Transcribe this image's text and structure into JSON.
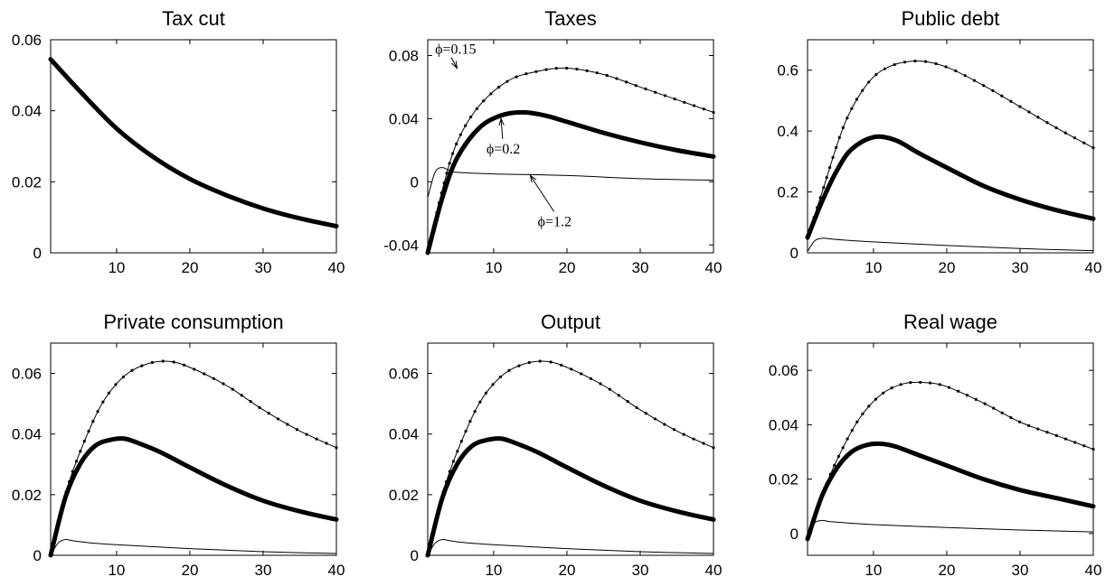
{
  "chart_data": [
    {
      "type": "line",
      "title": "Tax cut",
      "xlim": [
        1,
        40
      ],
      "ylim": [
        0,
        0.06
      ],
      "xticks": [
        "10",
        "20",
        "30",
        "40"
      ],
      "yticks": [
        "0",
        "0.02",
        "0.04",
        "0.06"
      ],
      "series": [
        {
          "style": "thick",
          "points": [
            [
              1,
              0.0545
            ],
            [
              5,
              0.0455
            ],
            [
              10,
              0.035
            ],
            [
              15,
              0.027
            ],
            [
              20,
              0.0208
            ],
            [
              25,
              0.0162
            ],
            [
              30,
              0.0125
            ],
            [
              35,
              0.0097
            ],
            [
              40,
              0.0075
            ]
          ]
        }
      ],
      "annotations": []
    },
    {
      "type": "line",
      "title": "Taxes",
      "xlim": [
        1,
        40
      ],
      "ylim": [
        -0.045,
        0.09
      ],
      "xticks": [
        "10",
        "20",
        "30",
        "40"
      ],
      "yticks": [
        "-0.04",
        "0",
        "0.04",
        "0.08"
      ],
      "series": [
        {
          "style": "dotted",
          "points": [
            [
              1,
              -0.045
            ],
            [
              3,
              -0.005
            ],
            [
              5,
              0.025
            ],
            [
              8,
              0.048
            ],
            [
              12,
              0.064
            ],
            [
              16,
              0.07
            ],
            [
              20,
              0.072
            ],
            [
              25,
              0.068
            ],
            [
              30,
              0.06
            ],
            [
              35,
              0.052
            ],
            [
              40,
              0.044
            ]
          ]
        },
        {
          "style": "thick",
          "points": [
            [
              1,
              -0.045
            ],
            [
              3,
              -0.01
            ],
            [
              5,
              0.015
            ],
            [
              8,
              0.034
            ],
            [
              11,
              0.042
            ],
            [
              14,
              0.044
            ],
            [
              17,
              0.042
            ],
            [
              20,
              0.038
            ],
            [
              25,
              0.031
            ],
            [
              30,
              0.025
            ],
            [
              35,
              0.02
            ],
            [
              40,
              0.016
            ]
          ]
        },
        {
          "style": "thin",
          "points": [
            [
              1,
              -0.01
            ],
            [
              2,
              0.006
            ],
            [
              3,
              0.009
            ],
            [
              4,
              0.007
            ],
            [
              5,
              0.006
            ],
            [
              10,
              0.005
            ],
            [
              20,
              0.004
            ],
            [
              30,
              0.002
            ],
            [
              40,
              0.001
            ]
          ]
        }
      ],
      "annotations": [
        {
          "text": "ϕ=0.15",
          "at": [
            2,
            0.081
          ],
          "point": [
            5,
            0.072
          ]
        },
        {
          "text": "ϕ=0.2",
          "at": [
            9,
            0.018
          ],
          "point": [
            11,
            0.04
          ]
        },
        {
          "text": "ϕ=1.2",
          "at": [
            16,
            -0.028
          ],
          "point": [
            15,
            0.004
          ]
        }
      ]
    },
    {
      "type": "line",
      "title": "Public debt",
      "xlim": [
        1,
        40
      ],
      "ylim": [
        0,
        0.7
      ],
      "xticks": [
        "10",
        "20",
        "30",
        "40"
      ],
      "yticks": [
        "0",
        "0.2",
        "0.4",
        "0.6"
      ],
      "series": [
        {
          "style": "dotted",
          "points": [
            [
              1,
              0.05
            ],
            [
              3,
              0.2
            ],
            [
              6,
              0.42
            ],
            [
              9,
              0.55
            ],
            [
              12,
              0.61
            ],
            [
              16,
              0.63
            ],
            [
              20,
              0.61
            ],
            [
              25,
              0.55
            ],
            [
              30,
              0.48
            ],
            [
              35,
              0.41
            ],
            [
              40,
              0.345
            ]
          ]
        },
        {
          "style": "thick",
          "points": [
            [
              1,
              0.05
            ],
            [
              3,
              0.17
            ],
            [
              5,
              0.27
            ],
            [
              7,
              0.34
            ],
            [
              10,
              0.38
            ],
            [
              13,
              0.37
            ],
            [
              16,
              0.33
            ],
            [
              20,
              0.28
            ],
            [
              25,
              0.22
            ],
            [
              30,
              0.175
            ],
            [
              35,
              0.14
            ],
            [
              40,
              0.112
            ]
          ]
        },
        {
          "style": "thin",
          "points": [
            [
              1,
              0.005
            ],
            [
              2,
              0.04
            ],
            [
              3,
              0.048
            ],
            [
              4,
              0.046
            ],
            [
              6,
              0.042
            ],
            [
              10,
              0.036
            ],
            [
              20,
              0.024
            ],
            [
              30,
              0.014
            ],
            [
              40,
              0.007
            ]
          ]
        }
      ],
      "annotations": []
    },
    {
      "type": "line",
      "title": "Private consumption",
      "xlim": [
        1,
        40
      ],
      "ylim": [
        0,
        0.07
      ],
      "xticks": [
        "10",
        "20",
        "30",
        "40"
      ],
      "yticks": [
        "0",
        "0.02",
        "0.04",
        "0.06"
      ],
      "series": [
        {
          "style": "dotted",
          "points": [
            [
              1,
              0.0
            ],
            [
              3,
              0.02
            ],
            [
              5,
              0.034
            ],
            [
              8,
              0.05
            ],
            [
              11,
              0.059
            ],
            [
              14,
              0.063
            ],
            [
              17,
              0.064
            ],
            [
              20,
              0.062
            ],
            [
              25,
              0.056
            ],
            [
              30,
              0.048
            ],
            [
              35,
              0.041
            ],
            [
              40,
              0.0355
            ]
          ]
        },
        {
          "style": "thick",
          "points": [
            [
              1,
              0.0
            ],
            [
              3,
              0.019
            ],
            [
              5,
              0.03
            ],
            [
              7,
              0.036
            ],
            [
              9,
              0.038
            ],
            [
              11,
              0.0385
            ],
            [
              13,
              0.037
            ],
            [
              16,
              0.034
            ],
            [
              20,
              0.029
            ],
            [
              25,
              0.023
            ],
            [
              30,
              0.018
            ],
            [
              35,
              0.0145
            ],
            [
              40,
              0.0118
            ]
          ]
        },
        {
          "style": "thin",
          "points": [
            [
              1,
              0.0
            ],
            [
              2,
              0.004
            ],
            [
              3,
              0.0052
            ],
            [
              4,
              0.0048
            ],
            [
              6,
              0.0042
            ],
            [
              10,
              0.0035
            ],
            [
              20,
              0.0022
            ],
            [
              30,
              0.0012
            ],
            [
              40,
              0.0006
            ]
          ]
        }
      ],
      "annotations": []
    },
    {
      "type": "line",
      "title": "Output",
      "xlim": [
        1,
        40
      ],
      "ylim": [
        0,
        0.07
      ],
      "xticks": [
        "10",
        "20",
        "30",
        "40"
      ],
      "yticks": [
        "0",
        "0.02",
        "0.04",
        "0.06"
      ],
      "series": [
        {
          "style": "dotted",
          "points": [
            [
              1,
              0.0
            ],
            [
              3,
              0.02
            ],
            [
              5,
              0.034
            ],
            [
              8,
              0.05
            ],
            [
              11,
              0.059
            ],
            [
              14,
              0.063
            ],
            [
              17,
              0.064
            ],
            [
              20,
              0.062
            ],
            [
              25,
              0.056
            ],
            [
              30,
              0.048
            ],
            [
              35,
              0.041
            ],
            [
              40,
              0.0355
            ]
          ]
        },
        {
          "style": "thick",
          "points": [
            [
              1,
              0.0
            ],
            [
              3,
              0.019
            ],
            [
              5,
              0.03
            ],
            [
              7,
              0.036
            ],
            [
              9,
              0.038
            ],
            [
              11,
              0.0385
            ],
            [
              13,
              0.037
            ],
            [
              16,
              0.034
            ],
            [
              20,
              0.029
            ],
            [
              25,
              0.023
            ],
            [
              30,
              0.018
            ],
            [
              35,
              0.0145
            ],
            [
              40,
              0.0118
            ]
          ]
        },
        {
          "style": "thin",
          "points": [
            [
              1,
              0.0
            ],
            [
              2,
              0.004
            ],
            [
              3,
              0.0052
            ],
            [
              4,
              0.0048
            ],
            [
              6,
              0.0042
            ],
            [
              10,
              0.0035
            ],
            [
              20,
              0.0022
            ],
            [
              30,
              0.0012
            ],
            [
              40,
              0.0006
            ]
          ]
        }
      ],
      "annotations": []
    },
    {
      "type": "line",
      "title": "Real wage",
      "xlim": [
        1,
        40
      ],
      "ylim": [
        -0.008,
        0.07
      ],
      "xticks": [
        "10",
        "20",
        "30",
        "40"
      ],
      "yticks": [
        "0",
        "0.02",
        "0.04",
        "0.06"
      ],
      "series": [
        {
          "style": "dotted",
          "points": [
            [
              1,
              -0.002
            ],
            [
              3,
              0.014
            ],
            [
              5,
              0.027
            ],
            [
              8,
              0.042
            ],
            [
              11,
              0.051
            ],
            [
              14,
              0.055
            ],
            [
              17,
              0.0555
            ],
            [
              20,
              0.054
            ],
            [
              25,
              0.048
            ],
            [
              30,
              0.041
            ],
            [
              35,
              0.036
            ],
            [
              40,
              0.031
            ]
          ]
        },
        {
          "style": "thick",
          "points": [
            [
              1,
              -0.002
            ],
            [
              3,
              0.014
            ],
            [
              5,
              0.024
            ],
            [
              7,
              0.03
            ],
            [
              9,
              0.0325
            ],
            [
              11,
              0.033
            ],
            [
              13,
              0.032
            ],
            [
              16,
              0.029
            ],
            [
              20,
              0.025
            ],
            [
              25,
              0.02
            ],
            [
              30,
              0.016
            ],
            [
              35,
              0.013
            ],
            [
              40,
              0.01
            ]
          ]
        },
        {
          "style": "thin",
          "points": [
            [
              1,
              0.0
            ],
            [
              2,
              0.004
            ],
            [
              3,
              0.0048
            ],
            [
              4,
              0.0044
            ],
            [
              6,
              0.004
            ],
            [
              10,
              0.0033
            ],
            [
              20,
              0.0022
            ],
            [
              30,
              0.0013
            ],
            [
              40,
              0.0006
            ]
          ]
        }
      ],
      "annotations": []
    }
  ]
}
